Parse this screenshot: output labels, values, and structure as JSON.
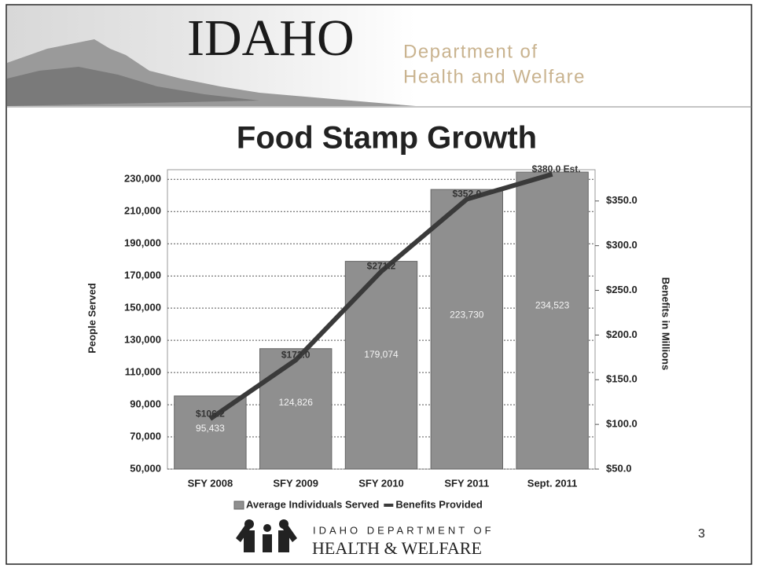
{
  "header": {
    "logo": "IDAHO",
    "department_line1": "Department of",
    "department_line2": "Health and Welfare"
  },
  "chart_data": {
    "type": "bar",
    "title": "Food Stamp Growth",
    "y_label": "People Served",
    "y2_label": "Benefits in Millions",
    "categories": [
      "SFY 2008",
      "SFY 2009",
      "SFY 2010",
      "SFY 2011",
      "Sept. 2011"
    ],
    "series": [
      {
        "name": "Average Individuals Served",
        "type": "bar",
        "color": "#8f8f8f",
        "values": [
          95433,
          124826,
          179074,
          223730,
          234523
        ],
        "value_labels": [
          "95,433",
          "124,826",
          "179,074",
          "223,730",
          "234,523"
        ]
      },
      {
        "name": "Benefits Provided",
        "type": "line",
        "axis": "y2",
        "color": "#3a3a3a",
        "values": [
          106.2,
          172.0,
          271.2,
          352.0,
          380.0
        ],
        "value_labels": [
          "$106.2",
          "$172.0",
          "$271.2",
          "$352.0",
          "$380.0 Est."
        ]
      }
    ],
    "ylim": [
      50000,
      236000
    ],
    "yticks": [
      {
        "value": 50000,
        "label": "50,000"
      },
      {
        "value": 70000,
        "label": "70,000"
      },
      {
        "value": 90000,
        "label": "90,000"
      },
      {
        "value": 110000,
        "label": "110,000"
      },
      {
        "value": 130000,
        "label": "130,000"
      },
      {
        "value": 150000,
        "label": "150,000"
      },
      {
        "value": 170000,
        "label": "170,000"
      },
      {
        "value": 190000,
        "label": "190,000"
      },
      {
        "value": 210000,
        "label": "210,000"
      },
      {
        "value": 230000,
        "label": "230,000"
      }
    ],
    "y2lim": [
      50,
      385
    ],
    "y2ticks": [
      {
        "value": 50,
        "label": "$50.0"
      },
      {
        "value": 100,
        "label": "$100.0"
      },
      {
        "value": 150,
        "label": "$150.0"
      },
      {
        "value": 200,
        "label": "$200.0"
      },
      {
        "value": 250,
        "label": "$250.0"
      },
      {
        "value": 300,
        "label": "$300.0"
      },
      {
        "value": 350,
        "label": "$350.0"
      }
    ],
    "grid": true,
    "legend": "bottom"
  },
  "footer": {
    "agency_line1": "IDAHO DEPARTMENT OF",
    "agency_line2": "HEALTH & WELFARE",
    "page_number": "3"
  }
}
